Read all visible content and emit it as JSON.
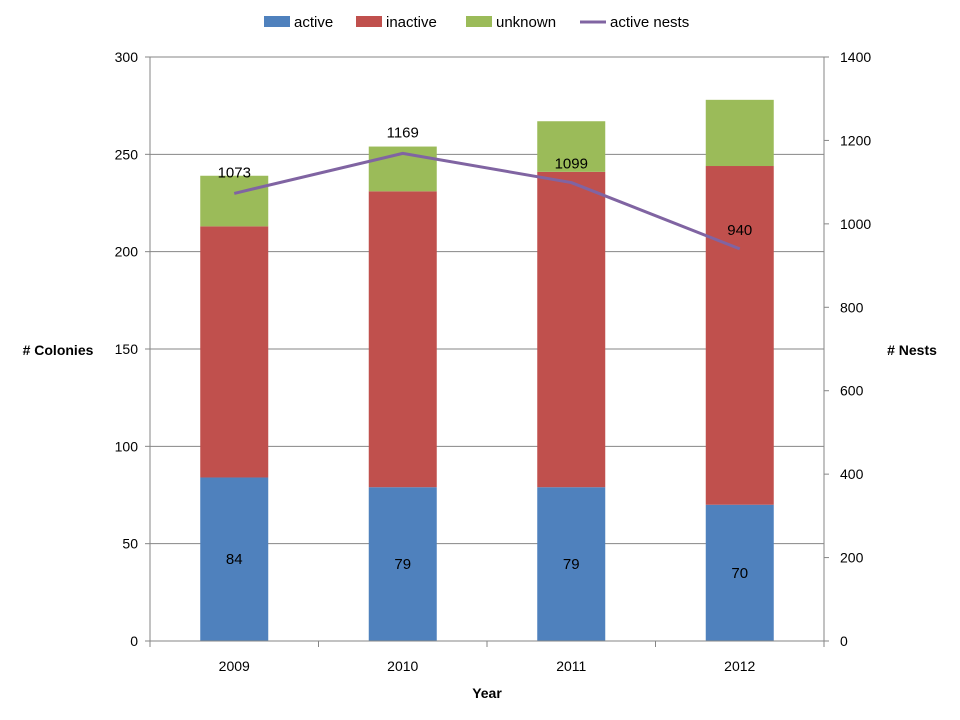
{
  "chart_data": {
    "type": "bar",
    "stacked": true,
    "categories": [
      "2009",
      "2010",
      "2011",
      "2012"
    ],
    "series": [
      {
        "name": "active",
        "color": "#4F81BD",
        "values": [
          84,
          79,
          79,
          70
        ]
      },
      {
        "name": "inactive",
        "color": "#C0504D",
        "values": [
          129,
          152,
          162,
          174
        ]
      },
      {
        "name": "unknown",
        "color": "#9BBB59",
        "values": [
          26,
          23,
          26,
          34
        ]
      }
    ],
    "line_series": {
      "name": "active nests",
      "color": "#8064A2",
      "axis": "right",
      "values": [
        1073,
        1169,
        1099,
        940
      ]
    },
    "bar_labels": [
      "84",
      "79",
      "79",
      "70"
    ],
    "line_labels": [
      "1073",
      "1169",
      "1099",
      "940"
    ],
    "xlabel": "Year",
    "ylabel": "# Colonies",
    "y2label": "# Nests",
    "ylim": [
      0,
      300
    ],
    "y2lim": [
      0,
      1400
    ],
    "yticks": [
      "0",
      "50",
      "100",
      "150",
      "200",
      "250",
      "300"
    ],
    "y2ticks": [
      "0",
      "200",
      "400",
      "600",
      "800",
      "1000",
      "1200",
      "1400"
    ],
    "grid": true,
    "legend_position": "top"
  }
}
